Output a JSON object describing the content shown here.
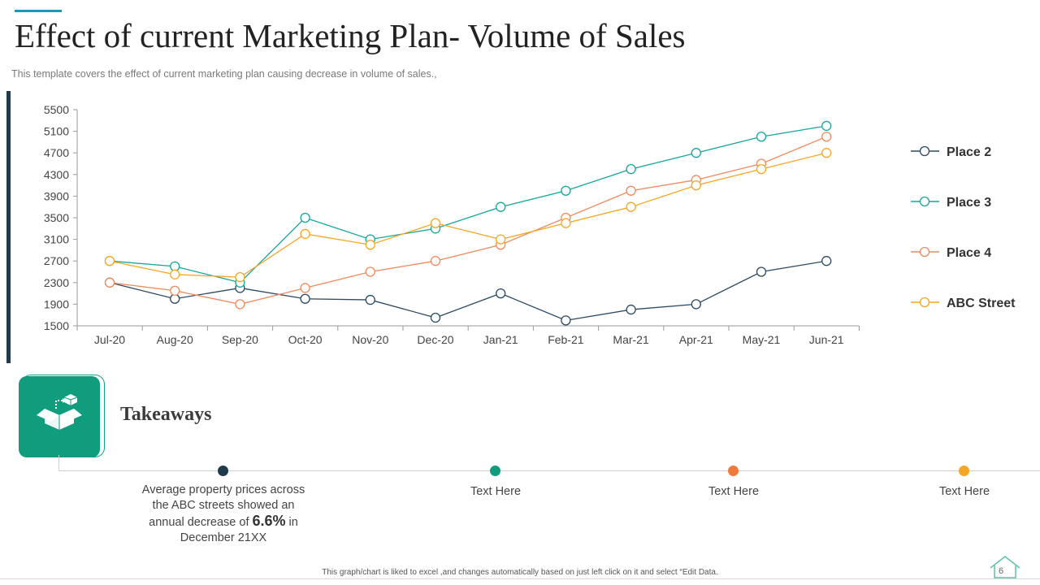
{
  "slide": {
    "title": "Effect of current Marketing Plan- Volume of Sales",
    "subtitle": "This template covers the effect of current marketing plan causing decrease in volume of sales.,",
    "footer_note": "This graph/chart is liked to excel ,and changes automatically based on just left click on it and select “Edit Data.",
    "page_number": "6"
  },
  "chart_data": {
    "type": "line",
    "title": "",
    "xlabel": "",
    "ylabel": "",
    "categories": [
      "Jul-20",
      "Aug-20",
      "Sep-20",
      "Oct-20",
      "Nov-20",
      "Dec-20",
      "Jan-21",
      "Feb-21",
      "Mar-21",
      "Apr-21",
      "May-21",
      "Jun-21"
    ],
    "ylim": [
      1500,
      5500
    ],
    "yticks": [
      1500,
      1900,
      2300,
      2700,
      3100,
      3500,
      3900,
      4300,
      4700,
      5100,
      5500
    ],
    "grid": false,
    "legend_position": "right",
    "series": [
      {
        "name": "Place 2",
        "color": "#2c4a63",
        "values": [
          2300,
          2000,
          2200,
          2000,
          1980,
          1650,
          2100,
          1600,
          1800,
          1900,
          2500,
          2700
        ]
      },
      {
        "name": "Place 3",
        "color": "#16a69a",
        "values": [
          2700,
          2600,
          2300,
          3500,
          3100,
          3300,
          3700,
          4000,
          4400,
          4700,
          5000,
          5200
        ]
      },
      {
        "name": "Place 4",
        "color": "#f08a5d",
        "values": [
          2300,
          2150,
          1900,
          2200,
          2500,
          2700,
          3000,
          3500,
          4000,
          4200,
          4500,
          5000
        ]
      },
      {
        "name": "ABC Street",
        "color": "#f5a623",
        "values": [
          2700,
          2450,
          2400,
          3200,
          3000,
          3400,
          3100,
          3400,
          3700,
          4100,
          4400,
          4700
        ]
      }
    ]
  },
  "takeaways": {
    "title": "Takeaways",
    "icon": "open-box-icon",
    "items": [
      {
        "color": "#1f3b4d",
        "text_before": "Average property prices across the ABC streets showed an annual decrease of ",
        "highlight": "6.6%",
        "text_after": " in December 21XX"
      },
      {
        "color": "#0f9d7e",
        "text": "Text Here"
      },
      {
        "color": "#f07a3c",
        "text": "Text Here"
      },
      {
        "color": "#f5a623",
        "text": "Text Here"
      }
    ]
  }
}
